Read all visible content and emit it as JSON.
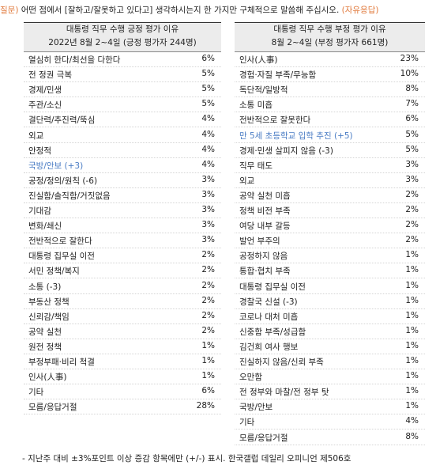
{
  "question": {
    "prefix": "질문)",
    "text": "어떤 점에서 [잘하고/잘못하고 있다고] 생각하시는지 한 가지만 구체적으로 말씀해 주십시오.",
    "suffix": "(자유응답)"
  },
  "tables": [
    {
      "title": "대통령 직무 수행 긍정 평가 이유",
      "subtitle": "2022년 8월 2~4일 (긍정 평가자 244명)",
      "highlighted": [
        7
      ],
      "rows": [
        [
          "열심히 한다/최선을 다한다",
          "6%"
        ],
        [
          "전 정권 극복",
          "5%"
        ],
        [
          "경제/민생",
          "5%"
        ],
        [
          "주관/소신",
          "5%"
        ],
        [
          "결단력/추진력/뚝심",
          "4%"
        ],
        [
          "외교",
          "4%"
        ],
        [
          "안정적",
          "4%"
        ],
        [
          "국방/안보 (+3)",
          "4%"
        ],
        [
          "공정/정의/원칙 (-6)",
          "3%"
        ],
        [
          "진실함/솔직함/거짓없음",
          "3%"
        ],
        [
          "기대감",
          "3%"
        ],
        [
          "변화/쇄신",
          "3%"
        ],
        [
          "전반적으로 잘한다",
          "3%"
        ],
        [
          "대통령 집무실 이전",
          "2%"
        ],
        [
          "서민 정책/복지",
          "2%"
        ],
        [
          "소통 (-3)",
          "2%"
        ],
        [
          "부동산 정책",
          "2%"
        ],
        [
          "신뢰감/책임",
          "2%"
        ],
        [
          "공약 실천",
          "2%"
        ],
        [
          "원전 정책",
          "1%"
        ],
        [
          "부정부패·비리 척결",
          "1%"
        ],
        [
          "인사(人事)",
          "1%"
        ],
        [
          "기타",
          "6%"
        ],
        [
          "모름/응답거절",
          "28%"
        ]
      ]
    },
    {
      "title": "대통령 직무 수행 부정 평가 이유",
      "subtitle": "8월 2~4일 (부정 평가자 661명)",
      "highlighted": [
        5
      ],
      "rows": [
        [
          "인사(人事)",
          "23%"
        ],
        [
          "경험·자질 부족/무능함",
          "10%"
        ],
        [
          "독단적/일방적",
          "8%"
        ],
        [
          "소통 미흡",
          "7%"
        ],
        [
          "전반적으로 잘못한다",
          "6%"
        ],
        [
          "만 5세 초등학교 입학 추진 (+5)",
          "5%"
        ],
        [
          "경제·민생 살피지 않음 (-3)",
          "5%"
        ],
        [
          "직무 태도",
          "3%"
        ],
        [
          "외교",
          "3%"
        ],
        [
          "공약 실천 미흡",
          "2%"
        ],
        [
          "정책 비전 부족",
          "2%"
        ],
        [
          "여당 내부 갈등",
          "2%"
        ],
        [
          "발언 부주의",
          "2%"
        ],
        [
          "공정하지 않음",
          "1%"
        ],
        [
          "통합·협치 부족",
          "1%"
        ],
        [
          "대통령 집무실 이전",
          "1%"
        ],
        [
          "경찰국 신설 (-3)",
          "1%"
        ],
        [
          "코로나 대처 미흡",
          "1%"
        ],
        [
          "신중함 부족/성급함",
          "1%"
        ],
        [
          "김건희 여사 행보",
          "1%"
        ],
        [
          "진실하지 않음/신뢰 부족",
          "1%"
        ],
        [
          "오만함",
          "1%"
        ],
        [
          "전 정부와 마찰/전 정부 탓",
          "1%"
        ],
        [
          "국방/안보",
          "1%"
        ],
        [
          "기타",
          "4%"
        ],
        [
          "모름/응답거절",
          "8%"
        ]
      ]
    }
  ],
  "highlight_color": "#4a7cc4",
  "accent_color": "#e0783a",
  "footnote": "- 지난주 대비 ±3%포인트 이상 증감 항목에만 (+/-) 표시. 한국갤럽 데일리 오피니언 제506호"
}
